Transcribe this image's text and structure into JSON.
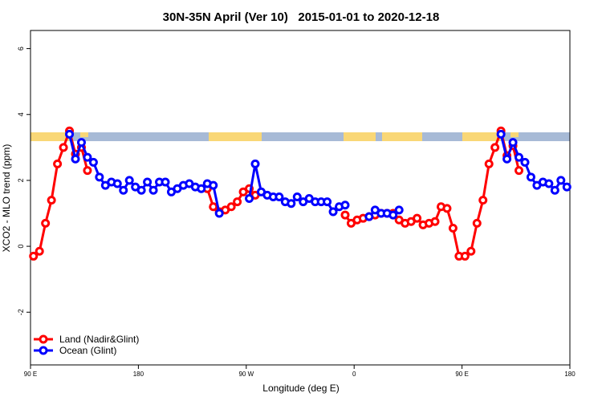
{
  "chart_data": {
    "type": "line",
    "title": "30N-35N April (Ver 10)   2015-01-01 to 2020-12-18",
    "x_label": "Longitude (deg E)",
    "y_label": "XCO2 - MLO trend (ppm)",
    "x": [
      92.5,
      97.5,
      102.5,
      107.5,
      112.5,
      117.5,
      122.5,
      127.5,
      132.5,
      137.5,
      142.5,
      147.5,
      152.5,
      157.5,
      162.5,
      167.5,
      172.5,
      177.5,
      182.5,
      187.5,
      192.5,
      197.5,
      202.5,
      207.5,
      212.5,
      217.5,
      222.5,
      227.5,
      232.5,
      237.5,
      242.5,
      247.5,
      252.5,
      257.5,
      262.5,
      267.5,
      272.5,
      277.5,
      282.5,
      287.5,
      292.5,
      297.5,
      302.5,
      307.5,
      312.5,
      317.5,
      322.5,
      327.5,
      332.5,
      337.5,
      342.5,
      347.5,
      352.5,
      357.5,
      362.5,
      367.5,
      372.5,
      377.5,
      382.5,
      387.5,
      392.5,
      397.5,
      402.5,
      407.5,
      412.5,
      417.5,
      422.5,
      427.5,
      432.5,
      437.5,
      442.5,
      447.5,
      452.5,
      457.5,
      462.5,
      467.5,
      472.5,
      477.5,
      482.5,
      487.5,
      492.5,
      497.5,
      502.5,
      507.5,
      512.5,
      517.5,
      522.5,
      527.5,
      532.5,
      537.5
    ],
    "series": [
      {
        "name": "Land (Nadir&Glint)",
        "color": "#ff0000",
        "values": [
          -0.3,
          -0.15,
          0.7,
          1.4,
          2.5,
          3.0,
          3.5,
          2.8,
          3.0,
          2.3,
          null,
          null,
          null,
          null,
          null,
          null,
          null,
          null,
          null,
          null,
          null,
          null,
          null,
          null,
          null,
          null,
          null,
          null,
          null,
          1.75,
          1.2,
          1.05,
          1.1,
          1.2,
          1.35,
          1.65,
          1.75,
          1.55,
          null,
          null,
          null,
          null,
          null,
          null,
          null,
          null,
          null,
          null,
          null,
          null,
          null,
          null,
          0.95,
          0.7,
          0.8,
          0.85,
          0.9,
          0.95,
          1.0,
          1.0,
          1.0,
          0.8,
          0.7,
          0.75,
          0.85,
          0.65,
          0.7,
          0.75,
          1.2,
          1.15,
          0.55,
          -0.3,
          -0.3,
          -0.15,
          0.7,
          1.4,
          2.5,
          3.0,
          3.5,
          2.75,
          3.05,
          2.3,
          null,
          null,
          null,
          null,
          null,
          null,
          null,
          null
        ]
      },
      {
        "name": "Ocean (Glint)",
        "color": "#0000ff",
        "values": [
          null,
          null,
          null,
          null,
          null,
          null,
          3.4,
          2.65,
          3.15,
          2.7,
          2.55,
          2.1,
          1.85,
          1.95,
          1.9,
          1.7,
          2.0,
          1.8,
          1.7,
          1.95,
          1.7,
          1.95,
          1.95,
          1.65,
          1.75,
          1.85,
          1.9,
          1.8,
          1.75,
          1.9,
          1.85,
          1.0,
          null,
          null,
          null,
          null,
          1.45,
          2.5,
          1.65,
          1.55,
          1.5,
          1.5,
          1.35,
          1.3,
          1.5,
          1.35,
          1.45,
          1.35,
          1.35,
          1.35,
          1.05,
          1.2,
          1.25,
          null,
          null,
          null,
          0.9,
          1.1,
          1.0,
          1.0,
          0.95,
          1.1,
          null,
          null,
          null,
          null,
          null,
          null,
          null,
          null,
          null,
          null,
          null,
          null,
          null,
          null,
          null,
          null,
          3.4,
          2.65,
          3.15,
          2.7,
          2.55,
          2.1,
          1.85,
          1.95,
          1.9,
          1.7,
          2.0,
          1.8
        ]
      }
    ],
    "xlim": [
      90,
      540
    ],
    "xticks": [
      {
        "value": 90,
        "label": "90 E"
      },
      {
        "value": 180,
        "label": "180"
      },
      {
        "value": 270,
        "label": "90 W"
      },
      {
        "value": 360,
        "label": "0"
      },
      {
        "value": 450,
        "label": "90 E"
      },
      {
        "value": 540,
        "label": "180"
      }
    ],
    "ylim": [
      -3.6,
      6.55
    ],
    "yticks": [
      -2,
      0,
      2,
      4,
      6
    ],
    "legend": "bottom-left"
  }
}
